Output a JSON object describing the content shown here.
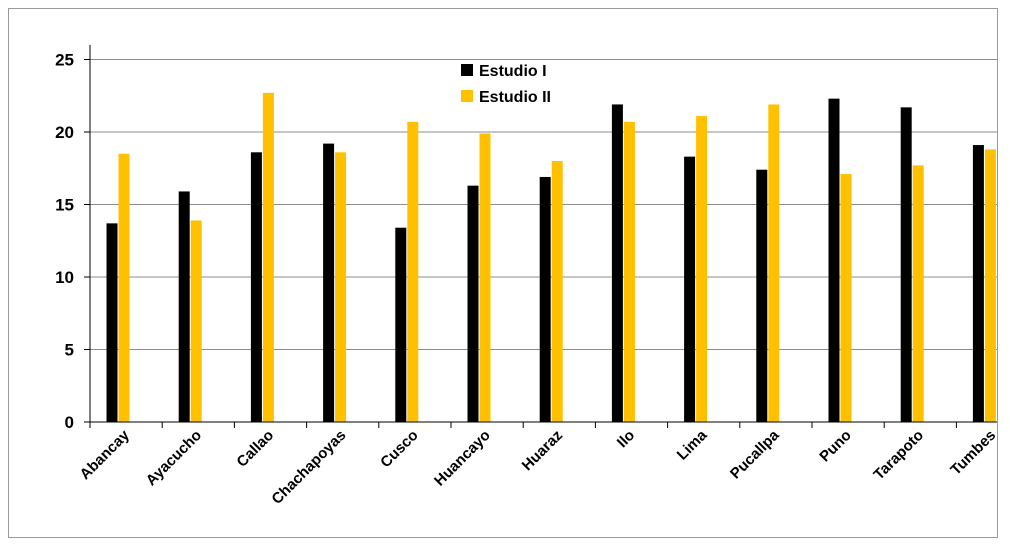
{
  "chart_data": {
    "type": "bar",
    "title": "",
    "xlabel": "",
    "ylabel": "",
    "ylim": [
      0,
      26
    ],
    "yticks": [
      0,
      5,
      10,
      15,
      20,
      25
    ],
    "grid": true,
    "legend_position": "top-center",
    "categories": [
      "Abancay",
      "Ayacucho",
      "Callao",
      "Chachapoyas",
      "Cusco",
      "Huancayo",
      "Huaraz",
      "Ilo",
      "Lima",
      "Pucallpa",
      "Puno",
      "Tarapoto",
      "Tumbes"
    ],
    "series": [
      {
        "name": "Estudio I",
        "color": "#000000",
        "values": [
          13.7,
          15.9,
          18.6,
          19.2,
          13.4,
          16.3,
          16.9,
          21.9,
          18.3,
          17.4,
          22.3,
          21.7,
          19.1
        ]
      },
      {
        "name": "Estudio II",
        "color": "#FFC000",
        "values": [
          18.5,
          13.9,
          22.7,
          18.6,
          20.7,
          19.9,
          18.0,
          20.7,
          21.1,
          21.9,
          17.1,
          17.7,
          18.8
        ]
      }
    ]
  }
}
